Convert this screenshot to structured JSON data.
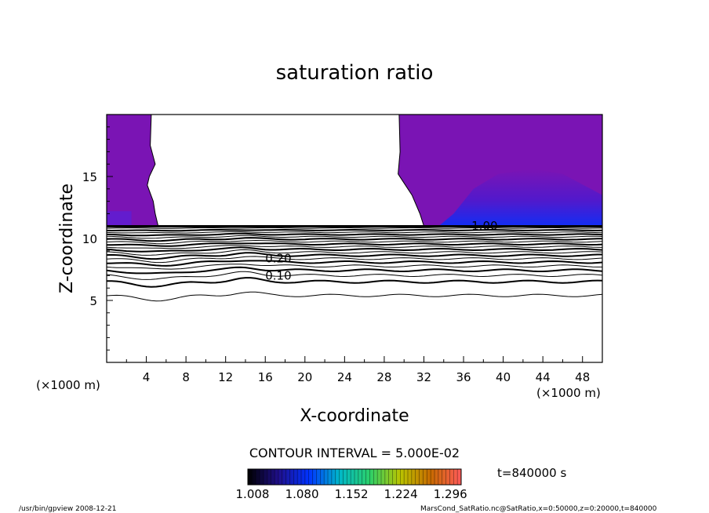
{
  "chart_data": {
    "type": "contour",
    "title": "saturation ratio",
    "xlabel": "X-coordinate",
    "ylabel": "Z-coordinate",
    "x_unit_label": "(×1000 m)",
    "xlim": [
      0,
      50
    ],
    "ylim": [
      0,
      20
    ],
    "x_ticks": [
      4,
      8,
      12,
      16,
      20,
      24,
      28,
      32,
      36,
      40,
      44,
      48
    ],
    "y_ticks": [
      5,
      10,
      15
    ],
    "contour_interval_label": "CONTOUR INTERVAL = 5.000E-02",
    "time_label": "t=840000 s",
    "colorbar": {
      "tick_labels": [
        "1.008",
        "1.080",
        "1.152",
        "1.224",
        "1.296"
      ],
      "colors": [
        "#000000",
        "#1f0f8a",
        "#0033ff",
        "#00b7c9",
        "#2bd06a",
        "#b9c400",
        "#c76a00",
        "#ff5a5a"
      ]
    },
    "fill_colors": {
      "purple": "#7a14b4",
      "blue": "#0032ff"
    },
    "contour_labels": [
      {
        "text": "0.10",
        "x": 16,
        "z": 7.0
      },
      {
        "text": "0.20",
        "x": 16,
        "z": 8.4
      },
      {
        "text": "1.00",
        "x": 36.8,
        "z": 11.0
      }
    ],
    "contour_levels": [
      0.05,
      0.1,
      0.15,
      0.2,
      0.25,
      0.3,
      0.35,
      0.4,
      0.45,
      0.5,
      0.55,
      0.6,
      0.65,
      0.7,
      0.75,
      0.8,
      0.85,
      0.9,
      0.95,
      1.0
    ],
    "saturated_region": {
      "left": {
        "x_max_top": 4.5,
        "x_max_bottom": 5.2,
        "z_min": 11.0
      },
      "right": {
        "x_min_top": 29.5,
        "x_min_bottom": 32.0,
        "z_min": 11.0
      }
    }
  },
  "footer": {
    "left": "/usr/bin/gpview  2008-12-21",
    "right": "MarsCond_SatRatio.nc@SatRatio,x=0:50000,z=0:20000,t=840000"
  }
}
